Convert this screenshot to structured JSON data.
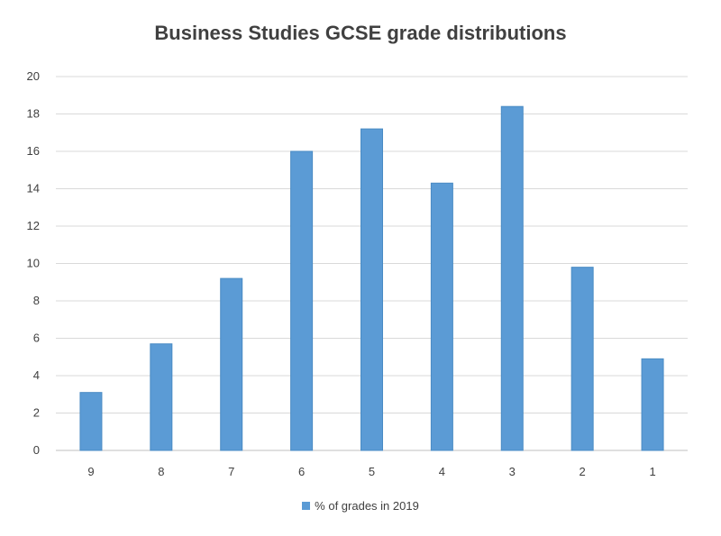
{
  "chart_data": {
    "type": "bar",
    "title": "Business Studies GCSE grade distributions",
    "xlabel": "",
    "ylabel": "",
    "categories": [
      "9",
      "8",
      "7",
      "6",
      "5",
      "4",
      "3",
      "2",
      "1"
    ],
    "series": [
      {
        "name": "% of grades in 2019",
        "values": [
          3.1,
          5.7,
          9.2,
          16.0,
          17.2,
          14.3,
          18.4,
          9.8,
          4.9
        ]
      }
    ],
    "ylim": [
      0,
      20
    ],
    "yticks": [
      "0",
      "2",
      "4",
      "6",
      "8",
      "10",
      "12",
      "14",
      "16",
      "18",
      "20"
    ],
    "grid": true,
    "legend_position": "bottom",
    "colors": {
      "bar": "#5b9bd5",
      "bar_edge": "#4a8bc4",
      "grid": "#d9d9d9",
      "axis": "#bfbfbf"
    }
  }
}
